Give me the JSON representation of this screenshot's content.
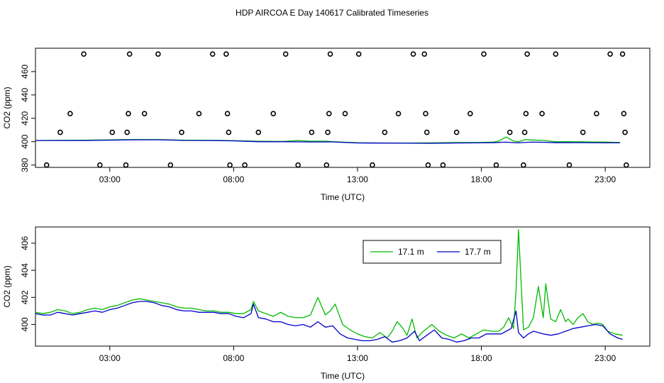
{
  "page": {
    "title": "HDP AIRCOA E  Day 140617  Calibrated Timeseries"
  },
  "chart_data": [
    {
      "type": "scatter",
      "xlabel": "Time (UTC)",
      "ylabel": "CO2 (ppm)",
      "xlim": [
        0.0,
        24.8
      ],
      "ylim": [
        378,
        480
      ],
      "x_ticks": [
        3,
        8,
        13,
        18,
        23
      ],
      "x_tick_labels": [
        "03:00",
        "08:00",
        "13:00",
        "18:00",
        "23:00"
      ],
      "y_ticks": [
        380,
        400,
        420,
        440,
        460
      ],
      "y_tick_labels": [
        "380",
        "400",
        "420",
        "440",
        "460"
      ],
      "grid": false,
      "legend": "none",
      "points": [
        {
          "x": 0.45,
          "y": 380
        },
        {
          "x": 1.0,
          "y": 408
        },
        {
          "x": 1.4,
          "y": 424
        },
        {
          "x": 1.95,
          "y": 475
        },
        {
          "x": 2.6,
          "y": 380
        },
        {
          "x": 3.1,
          "y": 408
        },
        {
          "x": 3.65,
          "y": 380
        },
        {
          "x": 3.7,
          "y": 408
        },
        {
          "x": 3.75,
          "y": 424
        },
        {
          "x": 3.8,
          "y": 475
        },
        {
          "x": 4.4,
          "y": 424
        },
        {
          "x": 4.95,
          "y": 475
        },
        {
          "x": 5.45,
          "y": 380
        },
        {
          "x": 5.9,
          "y": 408
        },
        {
          "x": 6.6,
          "y": 424
        },
        {
          "x": 7.15,
          "y": 475
        },
        {
          "x": 7.7,
          "y": 475
        },
        {
          "x": 7.75,
          "y": 424
        },
        {
          "x": 7.8,
          "y": 408
        },
        {
          "x": 7.85,
          "y": 380
        },
        {
          "x": 8.45,
          "y": 380
        },
        {
          "x": 9.0,
          "y": 408
        },
        {
          "x": 9.6,
          "y": 424
        },
        {
          "x": 10.1,
          "y": 475
        },
        {
          "x": 10.6,
          "y": 380
        },
        {
          "x": 11.15,
          "y": 408
        },
        {
          "x": 11.75,
          "y": 380
        },
        {
          "x": 11.8,
          "y": 408
        },
        {
          "x": 11.85,
          "y": 424
        },
        {
          "x": 11.9,
          "y": 475
        },
        {
          "x": 12.5,
          "y": 424
        },
        {
          "x": 13.05,
          "y": 475
        },
        {
          "x": 13.6,
          "y": 380
        },
        {
          "x": 14.1,
          "y": 408
        },
        {
          "x": 14.65,
          "y": 424
        },
        {
          "x": 15.25,
          "y": 475
        },
        {
          "x": 15.7,
          "y": 475
        },
        {
          "x": 15.75,
          "y": 424
        },
        {
          "x": 15.8,
          "y": 408
        },
        {
          "x": 15.85,
          "y": 380
        },
        {
          "x": 16.45,
          "y": 380
        },
        {
          "x": 17.0,
          "y": 408
        },
        {
          "x": 17.55,
          "y": 424
        },
        {
          "x": 18.1,
          "y": 475
        },
        {
          "x": 18.6,
          "y": 380
        },
        {
          "x": 19.15,
          "y": 408
        },
        {
          "x": 19.7,
          "y": 380
        },
        {
          "x": 19.75,
          "y": 408
        },
        {
          "x": 19.8,
          "y": 424
        },
        {
          "x": 19.85,
          "y": 475
        },
        {
          "x": 20.45,
          "y": 424
        },
        {
          "x": 21.0,
          "y": 475
        },
        {
          "x": 21.55,
          "y": 380
        },
        {
          "x": 22.1,
          "y": 408
        },
        {
          "x": 22.65,
          "y": 424
        },
        {
          "x": 23.2,
          "y": 475
        },
        {
          "x": 23.7,
          "y": 475
        },
        {
          "x": 23.75,
          "y": 424
        },
        {
          "x": 23.8,
          "y": 408
        },
        {
          "x": 23.85,
          "y": 380
        }
      ],
      "series": [
        {
          "color": "#00bb00",
          "x": [
            0.0,
            1.0,
            2.0,
            3.0,
            4.0,
            5.0,
            6.0,
            7.0,
            8.0,
            9.0,
            10.0,
            10.6,
            11.0,
            11.8,
            12.0,
            13.0,
            13.5,
            14.0,
            15.0,
            16.0,
            17.0,
            18.0,
            18.5,
            18.7,
            19.0,
            19.3,
            19.5,
            19.8,
            20.0,
            20.5,
            21.0,
            21.5,
            22.0,
            22.5,
            23.0,
            23.6
          ],
          "y": [
            401.0,
            401.2,
            401.3,
            401.6,
            401.9,
            401.8,
            401.3,
            401.2,
            400.9,
            400.4,
            400.2,
            401.0,
            400.5,
            400.4,
            400.0,
            399.1,
            399.0,
            398.9,
            398.9,
            399.0,
            399.3,
            399.4,
            399.7,
            400.5,
            404.0,
            400.5,
            399.9,
            401.8,
            401.5,
            401.0,
            400.0,
            400.1,
            399.9,
            399.8,
            399.7,
            399.3
          ]
        },
        {
          "color": "#0000cc",
          "x": [
            0.0,
            1.0,
            2.0,
            3.0,
            4.0,
            5.0,
            6.0,
            7.0,
            8.0,
            9.0,
            10.0,
            11.0,
            12.0,
            13.0,
            13.5,
            14.0,
            15.0,
            16.0,
            17.0,
            18.0,
            18.5,
            19.0,
            19.3,
            19.5,
            20.0,
            20.5,
            21.0,
            22.0,
            23.0,
            23.6
          ],
          "y": [
            401.0,
            401.0,
            401.0,
            401.3,
            401.6,
            401.6,
            401.1,
            401.0,
            400.7,
            400.0,
            400.0,
            399.8,
            399.8,
            398.9,
            398.8,
            398.8,
            398.7,
            398.6,
            398.9,
            399.0,
            399.1,
            399.6,
            399.2,
            399.0,
            399.6,
            399.5,
            399.1,
            399.2,
            399.0,
            399.0
          ]
        }
      ]
    },
    {
      "type": "line",
      "xlabel": "Time (UTC)",
      "ylabel": "CO2 (ppm)",
      "xlim": [
        0.0,
        24.8
      ],
      "ylim": [
        398.4,
        407.2
      ],
      "x_ticks": [
        3,
        8,
        13,
        18,
        23
      ],
      "x_tick_labels": [
        "03:00",
        "08:00",
        "13:00",
        "18:00",
        "23:00"
      ],
      "y_ticks": [
        400,
        402,
        404,
        406
      ],
      "y_tick_labels": [
        "400",
        "402",
        "404",
        "406"
      ],
      "grid": false,
      "legend": "top-center",
      "series": [
        {
          "name": "17.1 m",
          "color": "#00bb00",
          "x": [
            0.0,
            0.3,
            0.6,
            0.9,
            1.2,
            1.5,
            1.8,
            2.1,
            2.4,
            2.7,
            3.0,
            3.3,
            3.6,
            3.9,
            4.2,
            4.5,
            4.8,
            5.1,
            5.4,
            5.7,
            6.0,
            6.3,
            6.6,
            6.9,
            7.2,
            7.5,
            7.8,
            8.1,
            8.4,
            8.7,
            8.8,
            9.0,
            9.3,
            9.6,
            9.9,
            10.2,
            10.5,
            10.8,
            11.1,
            11.4,
            11.7,
            11.9,
            12.1,
            12.4,
            12.7,
            13.0,
            13.3,
            13.6,
            13.9,
            14.2,
            14.4,
            14.6,
            14.8,
            15.0,
            15.2,
            15.4,
            15.6,
            15.8,
            16.0,
            16.3,
            16.6,
            16.9,
            17.2,
            17.5,
            17.8,
            18.1,
            18.4,
            18.7,
            18.9,
            19.1,
            19.3,
            19.4,
            19.5,
            19.7,
            19.9,
            20.1,
            20.3,
            20.5,
            20.6,
            20.8,
            21.0,
            21.2,
            21.4,
            21.5,
            21.7,
            21.9,
            22.1,
            22.3,
            22.5,
            22.7,
            22.9,
            23.1,
            23.4,
            23.7
          ],
          "y": [
            400.9,
            400.8,
            400.9,
            401.1,
            401.0,
            400.8,
            400.9,
            401.1,
            401.2,
            401.1,
            401.3,
            401.4,
            401.6,
            401.8,
            401.9,
            401.8,
            401.7,
            401.6,
            401.5,
            401.3,
            401.2,
            401.2,
            401.1,
            401.0,
            401.0,
            400.9,
            400.9,
            400.8,
            400.8,
            401.1,
            401.7,
            401.0,
            400.8,
            400.6,
            400.9,
            400.6,
            400.5,
            400.5,
            400.7,
            402.0,
            400.7,
            401.0,
            401.5,
            400.0,
            399.6,
            399.3,
            399.1,
            399.0,
            399.4,
            399.0,
            399.5,
            400.2,
            399.8,
            399.2,
            400.4,
            399.0,
            399.4,
            399.7,
            400.0,
            399.5,
            399.2,
            399.0,
            399.3,
            399.0,
            399.3,
            399.6,
            399.5,
            399.5,
            399.8,
            400.5,
            399.7,
            402.5,
            407.0,
            399.6,
            399.8,
            400.5,
            402.8,
            400.5,
            403.0,
            400.4,
            400.2,
            401.1,
            400.2,
            400.4,
            400.0,
            400.5,
            400.8,
            400.2,
            400.0,
            400.1,
            400.0,
            399.5,
            399.3,
            399.2
          ]
        },
        {
          "name": "17.7 m",
          "color": "#0000cc",
          "x": [
            0.0,
            0.3,
            0.6,
            0.9,
            1.2,
            1.5,
            1.8,
            2.1,
            2.4,
            2.7,
            3.0,
            3.3,
            3.6,
            3.9,
            4.2,
            4.5,
            4.8,
            5.1,
            5.4,
            5.7,
            6.0,
            6.3,
            6.6,
            6.9,
            7.2,
            7.5,
            7.8,
            8.1,
            8.4,
            8.7,
            8.8,
            9.0,
            9.3,
            9.6,
            9.9,
            10.2,
            10.5,
            10.8,
            11.1,
            11.4,
            11.7,
            12.0,
            12.3,
            12.6,
            12.9,
            13.2,
            13.5,
            13.8,
            14.1,
            14.4,
            14.7,
            15.0,
            15.3,
            15.5,
            15.8,
            16.1,
            16.4,
            16.7,
            17.0,
            17.3,
            17.6,
            17.9,
            18.2,
            18.5,
            18.8,
            19.0,
            19.2,
            19.4,
            19.5,
            19.7,
            19.9,
            20.1,
            20.3,
            20.5,
            20.8,
            21.1,
            21.4,
            21.7,
            22.0,
            22.3,
            22.6,
            22.9,
            23.2,
            23.5,
            23.7
          ],
          "y": [
            400.8,
            400.7,
            400.7,
            400.9,
            400.8,
            400.7,
            400.8,
            400.9,
            401.0,
            400.9,
            401.1,
            401.2,
            401.4,
            401.6,
            401.7,
            401.7,
            401.6,
            401.4,
            401.3,
            401.1,
            401.0,
            401.0,
            400.9,
            400.9,
            400.9,
            400.8,
            400.8,
            400.6,
            400.5,
            400.8,
            401.5,
            400.5,
            400.4,
            400.2,
            400.2,
            400.0,
            399.9,
            400.0,
            399.8,
            400.2,
            399.8,
            399.9,
            399.3,
            399.0,
            398.9,
            398.8,
            398.8,
            398.9,
            399.1,
            398.7,
            398.8,
            399.0,
            399.5,
            398.8,
            399.2,
            399.6,
            399.0,
            398.9,
            398.7,
            398.8,
            399.0,
            399.0,
            399.3,
            399.3,
            399.3,
            399.5,
            399.7,
            401.0,
            399.4,
            399.0,
            399.3,
            399.5,
            399.4,
            399.3,
            399.2,
            399.3,
            399.5,
            399.7,
            399.8,
            399.9,
            400.0,
            399.9,
            399.3,
            399.0,
            398.9
          ]
        }
      ]
    }
  ]
}
